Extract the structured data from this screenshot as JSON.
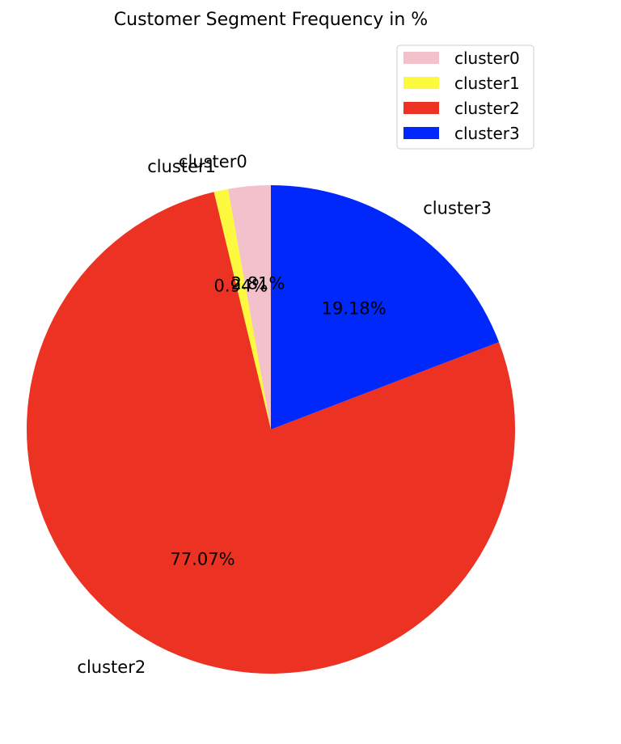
{
  "chart_data": {
    "type": "pie",
    "title": "Customer Segment Frequency in %",
    "start_angle_deg": 90,
    "direction": "counterclockwise",
    "legend_position": "top-right",
    "slices": [
      {
        "label": "cluster0",
        "value": 2.81,
        "pct_text": "2.81%",
        "color": "#f2c1cb"
      },
      {
        "label": "cluster1",
        "value": 0.94,
        "pct_text": "0.94%",
        "color": "#fdf93f"
      },
      {
        "label": "cluster2",
        "value": 77.07,
        "pct_text": "77.07%",
        "color": "#eb3223"
      },
      {
        "label": "cluster3",
        "value": 19.18,
        "pct_text": "19.18%",
        "color": "#0028fa"
      }
    ],
    "legend": [
      "cluster0",
      "cluster1",
      "cluster2",
      "cluster3"
    ]
  }
}
